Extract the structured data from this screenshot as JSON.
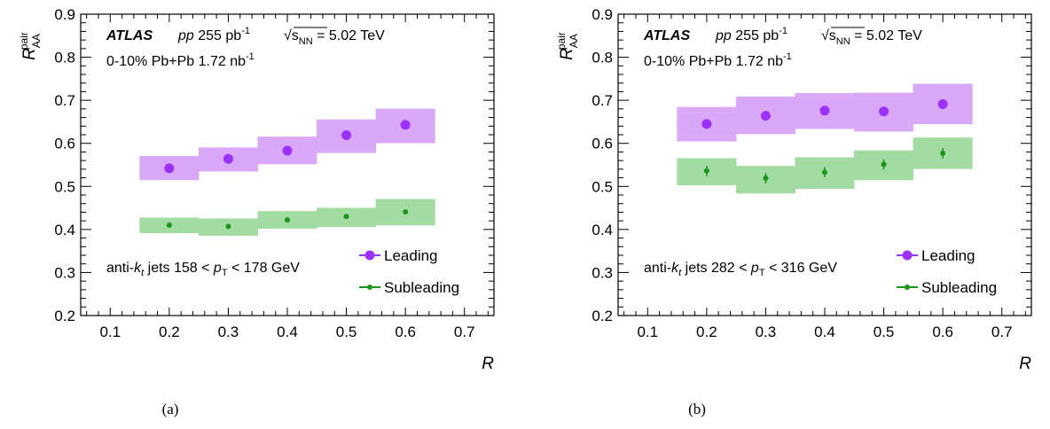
{
  "chart_data": [
    {
      "type": "scatter",
      "panel_label": "(a)",
      "xlabel": "R",
      "ylabel": "R_AA^pair",
      "xlim": [
        0.05,
        0.75
      ],
      "ylim": [
        0.2,
        0.9
      ],
      "xticks": [
        "0.1",
        "0.2",
        "0.3",
        "0.4",
        "0.5",
        "0.6",
        "0.7"
      ],
      "yticks": [
        "0.2",
        "0.3",
        "0.4",
        "0.5",
        "0.6",
        "0.7",
        "0.8",
        "0.9"
      ],
      "annotations": {
        "experiment": "ATLAS",
        "pp_lumi": "pp  255 pb⁻¹",
        "energy": "√s_NN = 5.02 TeV",
        "centrality": "0-10%  Pb+Pb  1.72 nb⁻¹",
        "jets": "anti-k_t jets   158 < p_T < 178 GeV"
      },
      "x": [
        0.2,
        0.3,
        0.4,
        0.5,
        0.6
      ],
      "series": [
        {
          "name": "Leading",
          "color": "#9b30ff",
          "band_color": "#d9a8f7",
          "values": [
            0.542,
            0.564,
            0.583,
            0.619,
            0.643
          ],
          "sys_low": [
            0.515,
            0.535,
            0.552,
            0.578,
            0.601
          ],
          "sys_high": [
            0.57,
            0.59,
            0.615,
            0.655,
            0.68
          ],
          "stat_err": [
            0.005,
            0.005,
            0.005,
            0.005,
            0.005
          ]
        },
        {
          "name": "Subleading",
          "color": "#1b961b",
          "band_color": "#a3dca3",
          "values": [
            0.41,
            0.407,
            0.422,
            0.43,
            0.441
          ],
          "sys_low": [
            0.392,
            0.386,
            0.402,
            0.406,
            0.41
          ],
          "sys_high": [
            0.427,
            0.425,
            0.442,
            0.45,
            0.47
          ],
          "stat_err": [
            0.004,
            0.004,
            0.004,
            0.004,
            0.004
          ]
        }
      ]
    },
    {
      "type": "scatter",
      "panel_label": "(b)",
      "xlabel": "R",
      "ylabel": "R_AA^pair",
      "xlim": [
        0.05,
        0.75
      ],
      "ylim": [
        0.2,
        0.9
      ],
      "xticks": [
        "0.1",
        "0.2",
        "0.3",
        "0.4",
        "0.5",
        "0.6",
        "0.7"
      ],
      "yticks": [
        "0.2",
        "0.3",
        "0.4",
        "0.5",
        "0.6",
        "0.7",
        "0.8",
        "0.9"
      ],
      "annotations": {
        "experiment": "ATLAS",
        "pp_lumi": "pp  255 pb⁻¹",
        "energy": "√s_NN = 5.02 TeV",
        "centrality": "0-10%  Pb+Pb  1.72 nb⁻¹",
        "jets": "anti-k_t jets   282 < p_T < 316 GeV"
      },
      "x": [
        0.2,
        0.3,
        0.4,
        0.5,
        0.6
      ],
      "series": [
        {
          "name": "Leading",
          "color": "#9b30ff",
          "band_color": "#d9a8f7",
          "values": [
            0.645,
            0.664,
            0.676,
            0.674,
            0.691
          ],
          "sys_low": [
            0.605,
            0.622,
            0.634,
            0.628,
            0.645
          ],
          "sys_high": [
            0.684,
            0.708,
            0.716,
            0.717,
            0.738
          ],
          "stat_err": [
            0.006,
            0.006,
            0.006,
            0.006,
            0.006
          ]
        },
        {
          "name": "Subleading",
          "color": "#1b961b",
          "band_color": "#a3dca3",
          "values": [
            0.536,
            0.519,
            0.533,
            0.551,
            0.577
          ],
          "sys_low": [
            0.503,
            0.484,
            0.495,
            0.515,
            0.541
          ],
          "sys_high": [
            0.565,
            0.547,
            0.567,
            0.583,
            0.613
          ],
          "stat_err": [
            0.012,
            0.012,
            0.012,
            0.012,
            0.012
          ]
        }
      ]
    }
  ]
}
